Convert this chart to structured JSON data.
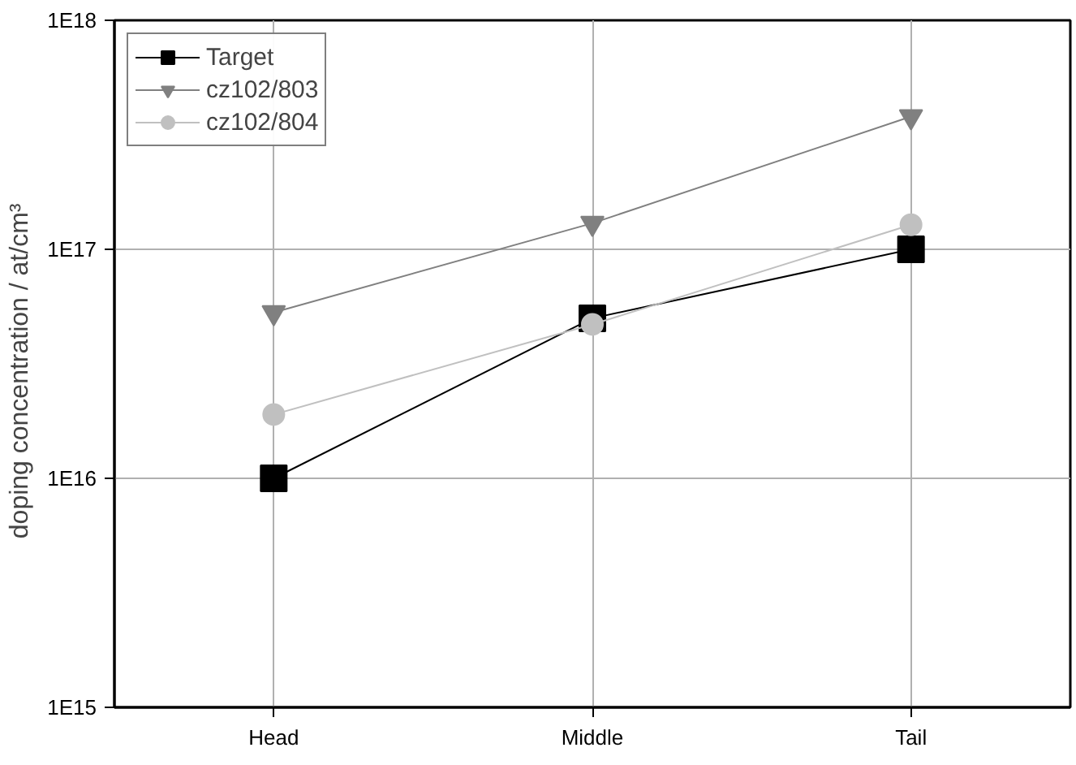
{
  "chart_data": {
    "type": "line",
    "ylabel": "doping concentration  /  at/cm³",
    "categories": [
      "Head",
      "Middle",
      "Tail"
    ],
    "log": "y",
    "ylim": [
      1000000000000000.0,
      1e+18
    ],
    "yticks": [
      {
        "value": 1000000000000000.0,
        "label": "1E15"
      },
      {
        "value": 1e+16,
        "label": "1E16"
      },
      {
        "value": 1e+17,
        "label": "1E17"
      },
      {
        "value": 1e+18,
        "label": "1E18"
      }
    ],
    "grid": true,
    "legend": "top left",
    "line_style": "solid",
    "series": [
      {
        "name": "Target",
        "color": "#000000",
        "marker": "square",
        "values": [
          1e+16,
          5e+16,
          1e+17
        ]
      },
      {
        "name": "cz102/803",
        "color": "#808080",
        "marker": "triangle",
        "values": [
          5.3e+16,
          1.3e+17,
          3.8e+17
        ]
      },
      {
        "name": "cz102/804",
        "color": "#c0c0c0",
        "marker": "circle",
        "values": [
          1.9e+16,
          4.7e+16,
          1.28e+17
        ]
      }
    ]
  }
}
